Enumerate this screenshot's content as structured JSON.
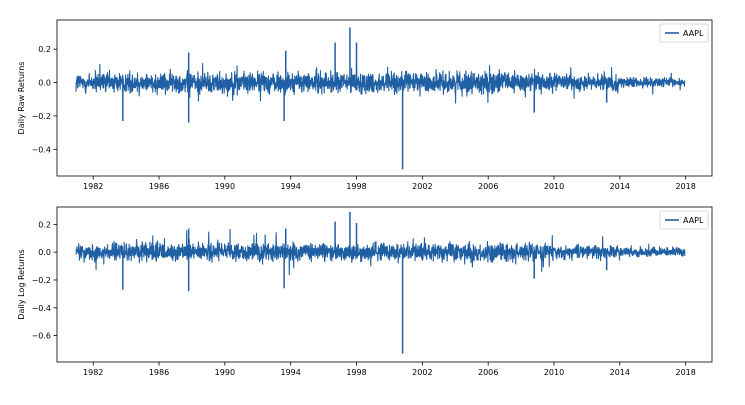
{
  "chart_data": [
    {
      "type": "line",
      "title": "",
      "xlabel": "",
      "ylabel": "Daily Raw Returns",
      "xlim": [
        1979.8,
        2019.6
      ],
      "ylim": [
        -0.56,
        0.375
      ],
      "x_ticks": [
        1982,
        1986,
        1990,
        1994,
        1998,
        2002,
        2006,
        2010,
        2014,
        2018
      ],
      "x_tick_labels": [
        "1982",
        "1986",
        "1990",
        "1994",
        "1998",
        "2002",
        "2006",
        "2010",
        "2014",
        "2018"
      ],
      "y_ticks": [
        -0.4,
        -0.2,
        0.0,
        0.2
      ],
      "y_tick_labels": [
        "−0.4",
        "−0.2",
        "0.0",
        "0.2"
      ],
      "legend": "top-right",
      "grid": false,
      "series": [
        {
          "name": "AAPL",
          "color": "#1f5fa3",
          "x_range": [
            1980.95,
            2017.95
          ],
          "typical_spread": 0.03,
          "spikes": [
            {
              "x": 1983.8,
              "y": -0.23
            },
            {
              "x": 1987.8,
              "y": 0.18
            },
            {
              "x": 1987.8,
              "y": -0.24
            },
            {
              "x": 1993.6,
              "y": -0.23
            },
            {
              "x": 1993.7,
              "y": 0.19
            },
            {
              "x": 1996.7,
              "y": 0.24
            },
            {
              "x": 1997.6,
              "y": 0.33
            },
            {
              "x": 1998.0,
              "y": 0.24
            },
            {
              "x": 2000.8,
              "y": -0.52
            },
            {
              "x": 2008.8,
              "y": -0.18
            },
            {
              "x": 2013.2,
              "y": -0.12
            }
          ]
        }
      ]
    },
    {
      "type": "line",
      "title": "",
      "xlabel": "",
      "ylabel": "Daily Log Returns",
      "xlim": [
        1979.8,
        2019.6
      ],
      "ylim": [
        -0.79,
        0.325
      ],
      "x_ticks": [
        1982,
        1986,
        1990,
        1994,
        1998,
        2002,
        2006,
        2010,
        2014,
        2018
      ],
      "x_tick_labels": [
        "1982",
        "1986",
        "1990",
        "1994",
        "1998",
        "2002",
        "2006",
        "2010",
        "2014",
        "2018"
      ],
      "y_ticks": [
        -0.6,
        -0.4,
        -0.2,
        0.0,
        0.2
      ],
      "y_tick_labels": [
        "−0.6",
        "−0.4",
        "−0.2",
        "0.0",
        "0.2"
      ],
      "legend": "top-right",
      "grid": false,
      "series": [
        {
          "name": "AAPL",
          "color": "#1f5fa3",
          "x_range": [
            1980.95,
            2017.95
          ],
          "typical_spread": 0.03,
          "spikes": [
            {
              "x": 1983.8,
              "y": -0.27
            },
            {
              "x": 1987.8,
              "y": 0.17
            },
            {
              "x": 1987.8,
              "y": -0.28
            },
            {
              "x": 1993.6,
              "y": -0.26
            },
            {
              "x": 1993.7,
              "y": 0.17
            },
            {
              "x": 1996.7,
              "y": 0.22
            },
            {
              "x": 1997.6,
              "y": 0.29
            },
            {
              "x": 1998.0,
              "y": 0.21
            },
            {
              "x": 2000.8,
              "y": -0.73
            },
            {
              "x": 2008.8,
              "y": -0.19
            },
            {
              "x": 2013.2,
              "y": -0.13
            }
          ]
        }
      ]
    }
  ]
}
